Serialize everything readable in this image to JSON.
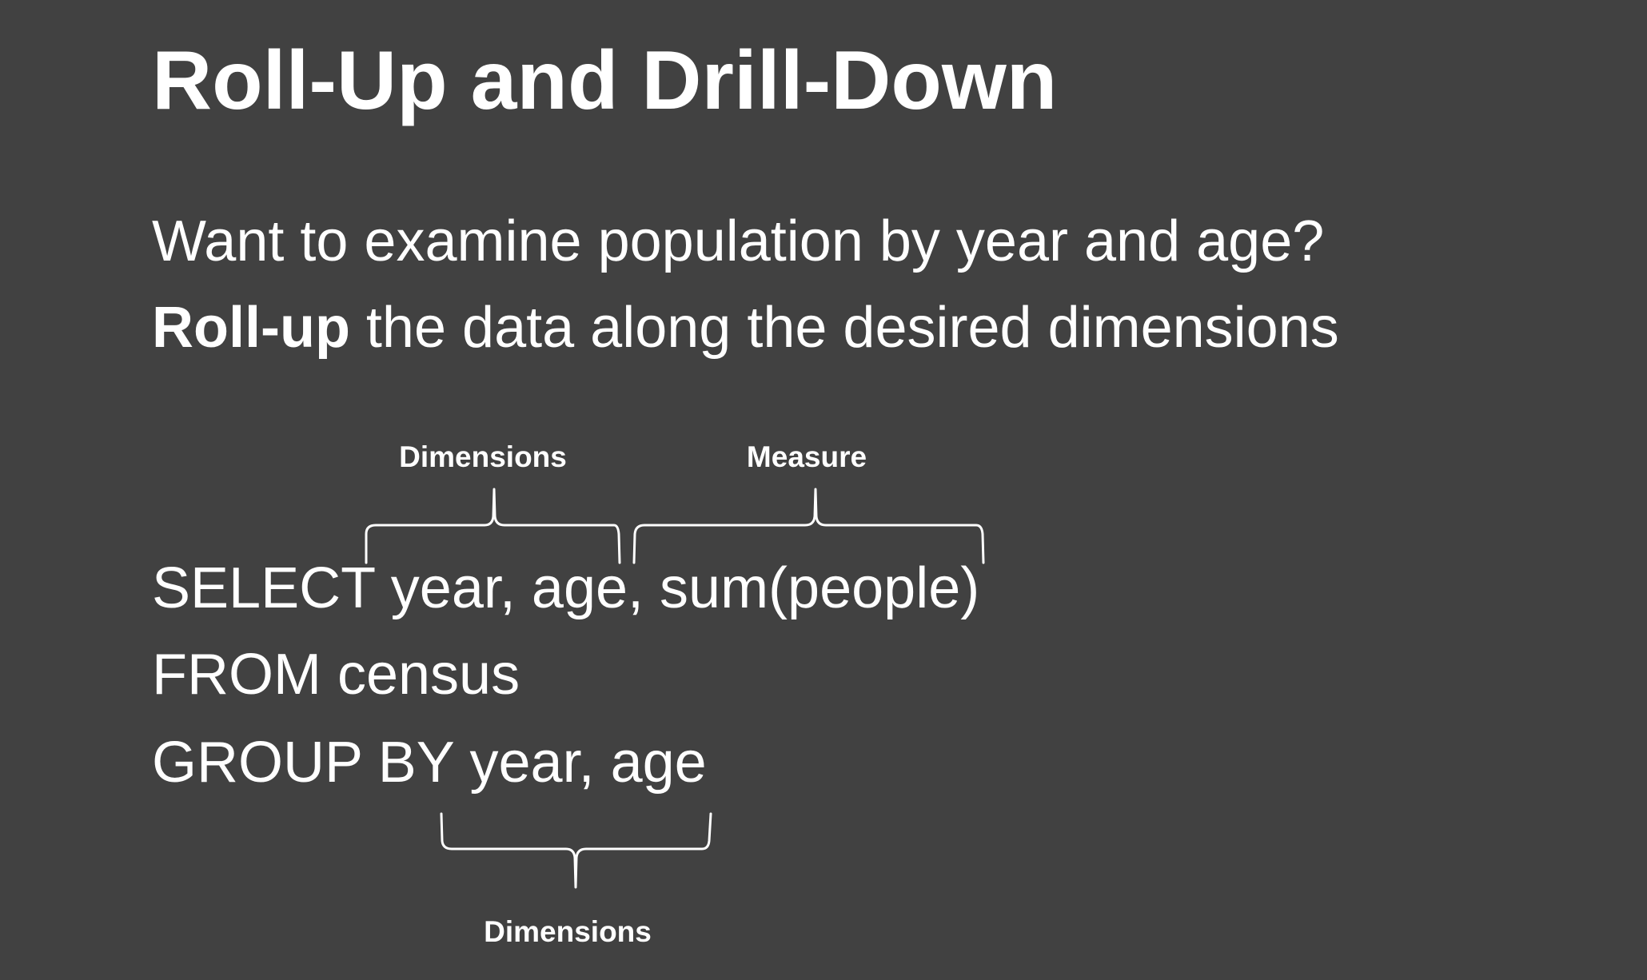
{
  "slide": {
    "title": "Roll-Up and Drill-Down",
    "line1": "Want to examine population by year and age?",
    "line2_bold": "Roll-up",
    "line2_rest": " the data along the desired dimensions",
    "sql": {
      "select_keyword": "SELECT",
      "select_rest": " year, age, sum(people)",
      "from_line": "FROM census",
      "group_keyword": "GROUP BY",
      "group_rest": " year, age"
    },
    "annotations": {
      "select_dimensions_label": "Dimensions",
      "select_measure_label": "Measure",
      "group_dimensions_label": "Dimensions"
    },
    "colors": {
      "background": "#414141",
      "text": "#ffffff"
    }
  }
}
